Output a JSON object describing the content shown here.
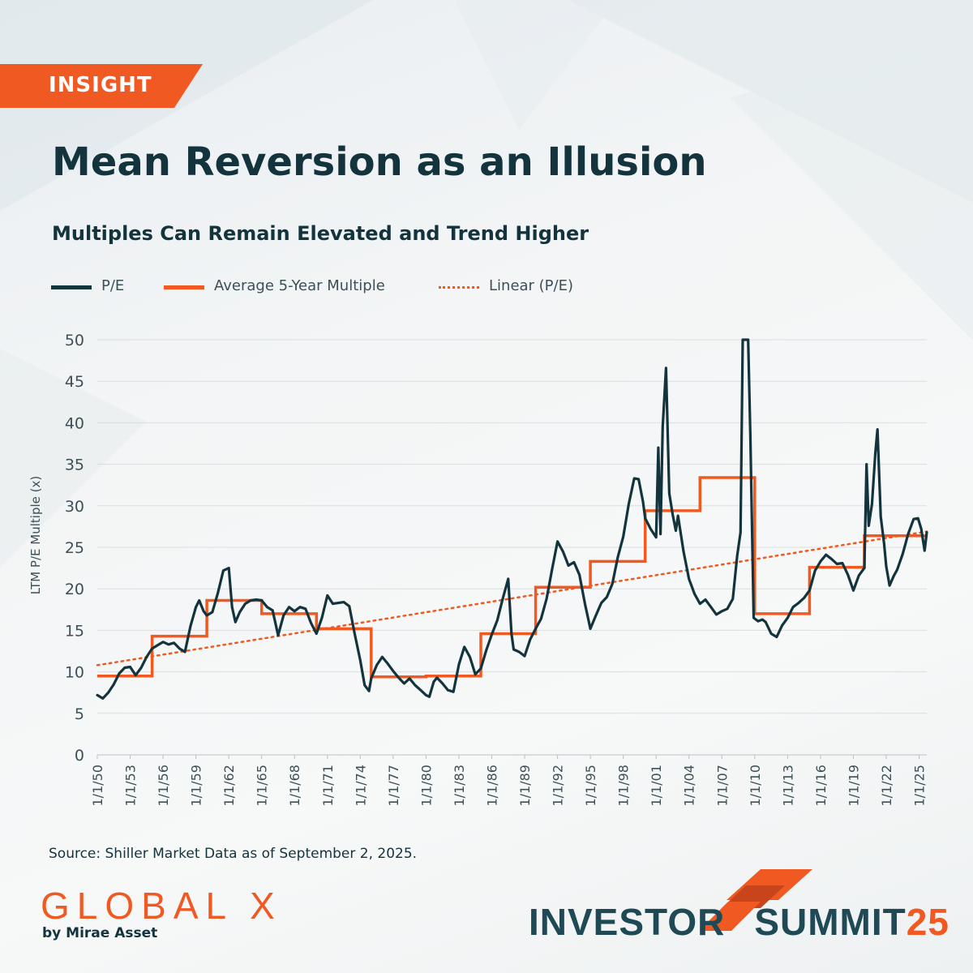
{
  "tag": "INSIGHT",
  "title": "Mean Reversion as an Illusion",
  "subtitle": "Multiples Can Remain Elevated and Trend Higher",
  "legend": {
    "pe": "P/E",
    "avg": "Average 5-Year Multiple",
    "linear": "Linear (P/E)"
  },
  "y_axis_label": "LTM P/E Multiple (x)",
  "source": "Source: Shiller Market Data as of September 2, 2025.",
  "brand": {
    "logo": "GLOBAL X",
    "logo_sub": "by Mirae Asset",
    "event_left": "INVESTOR",
    "event_right": "SUMMIT",
    "event_year": "25"
  },
  "colors": {
    "pe": "#13343d",
    "avg": "#f05a22",
    "linear": "#f05a22",
    "accent": "#f05a22"
  },
  "chart_data": {
    "type": "line",
    "ylabel": "LTM P/E Multiple (x)",
    "ylim": [
      0,
      50
    ],
    "yticks": [
      0,
      5,
      10,
      15,
      20,
      25,
      30,
      35,
      40,
      45,
      50
    ],
    "xlim": [
      1950,
      2025.7
    ],
    "xticks": [
      {
        "label": "1/1/50",
        "x": 1950
      },
      {
        "label": "1/1/53",
        "x": 1953
      },
      {
        "label": "1/1/56",
        "x": 1956
      },
      {
        "label": "1/1/59",
        "x": 1959
      },
      {
        "label": "1/1/62",
        "x": 1962
      },
      {
        "label": "1/1/65",
        "x": 1965
      },
      {
        "label": "1/1/68",
        "x": 1968
      },
      {
        "label": "1/1/71",
        "x": 1971
      },
      {
        "label": "1/1/74",
        "x": 1974
      },
      {
        "label": "1/1/77",
        "x": 1977
      },
      {
        "label": "1/1/80",
        "x": 1980
      },
      {
        "label": "1/1/83",
        "x": 1983
      },
      {
        "label": "1/1/86",
        "x": 1986
      },
      {
        "label": "1/1/89",
        "x": 1989
      },
      {
        "label": "1/1/92",
        "x": 1992
      },
      {
        "label": "1/1/95",
        "x": 1995
      },
      {
        "label": "1/1/98",
        "x": 1998
      },
      {
        "label": "1/1/01",
        "x": 2001
      },
      {
        "label": "1/1/04",
        "x": 2004
      },
      {
        "label": "1/1/07",
        "x": 2007
      },
      {
        "label": "1/1/10",
        "x": 2010
      },
      {
        "label": "1/1/13",
        "x": 2013
      },
      {
        "label": "1/1/16",
        "x": 2016
      },
      {
        "label": "1/1/19",
        "x": 2019
      },
      {
        "label": "1/1/22",
        "x": 2022
      },
      {
        "label": "1/1/25",
        "x": 2025
      }
    ],
    "series": [
      {
        "name": "P/E",
        "points": [
          [
            1950.0,
            7.2
          ],
          [
            1950.5,
            6.8
          ],
          [
            1951.0,
            7.5
          ],
          [
            1951.5,
            8.5
          ],
          [
            1952.0,
            9.8
          ],
          [
            1952.5,
            10.5
          ],
          [
            1953.0,
            10.6
          ],
          [
            1953.5,
            9.6
          ],
          [
            1954.0,
            10.5
          ],
          [
            1954.5,
            11.8
          ],
          [
            1955.0,
            12.8
          ],
          [
            1955.5,
            13.2
          ],
          [
            1956.0,
            13.6
          ],
          [
            1956.5,
            13.3
          ],
          [
            1957.0,
            13.5
          ],
          [
            1957.5,
            12.8
          ],
          [
            1958.0,
            12.4
          ],
          [
            1958.5,
            15.5
          ],
          [
            1959.0,
            17.8
          ],
          [
            1959.3,
            18.6
          ],
          [
            1959.7,
            17.3
          ],
          [
            1960.0,
            16.8
          ],
          [
            1960.5,
            17.2
          ],
          [
            1961.0,
            19.5
          ],
          [
            1961.5,
            22.2
          ],
          [
            1962.0,
            22.5
          ],
          [
            1962.3,
            17.8
          ],
          [
            1962.6,
            16.0
          ],
          [
            1963.0,
            17.2
          ],
          [
            1963.5,
            18.2
          ],
          [
            1964.0,
            18.6
          ],
          [
            1964.5,
            18.7
          ],
          [
            1965.0,
            18.6
          ],
          [
            1965.5,
            17.8
          ],
          [
            1966.0,
            17.4
          ],
          [
            1966.5,
            14.4
          ],
          [
            1967.0,
            16.8
          ],
          [
            1967.5,
            17.8
          ],
          [
            1968.0,
            17.3
          ],
          [
            1968.5,
            17.8
          ],
          [
            1969.0,
            17.6
          ],
          [
            1969.5,
            15.9
          ],
          [
            1970.0,
            14.6
          ],
          [
            1970.5,
            16.5
          ],
          [
            1971.0,
            19.2
          ],
          [
            1971.5,
            18.2
          ],
          [
            1972.0,
            18.3
          ],
          [
            1972.5,
            18.4
          ],
          [
            1973.0,
            17.9
          ],
          [
            1973.5,
            14.5
          ],
          [
            1974.0,
            11.4
          ],
          [
            1974.4,
            8.4
          ],
          [
            1974.8,
            7.7
          ],
          [
            1975.0,
            9.2
          ],
          [
            1975.5,
            10.8
          ],
          [
            1976.0,
            11.8
          ],
          [
            1976.5,
            11.0
          ],
          [
            1977.0,
            10.1
          ],
          [
            1977.5,
            9.3
          ],
          [
            1978.0,
            8.6
          ],
          [
            1978.5,
            9.2
          ],
          [
            1979.0,
            8.4
          ],
          [
            1979.5,
            7.8
          ],
          [
            1980.0,
            7.2
          ],
          [
            1980.3,
            7.0
          ],
          [
            1980.7,
            8.8
          ],
          [
            1981.0,
            9.3
          ],
          [
            1981.5,
            8.6
          ],
          [
            1982.0,
            7.8
          ],
          [
            1982.5,
            7.6
          ],
          [
            1983.0,
            10.9
          ],
          [
            1983.5,
            13.0
          ],
          [
            1984.0,
            11.8
          ],
          [
            1984.5,
            9.7
          ],
          [
            1985.0,
            10.4
          ],
          [
            1985.5,
            12.6
          ],
          [
            1986.0,
            14.5
          ],
          [
            1986.5,
            16.2
          ],
          [
            1987.0,
            18.8
          ],
          [
            1987.5,
            21.2
          ],
          [
            1987.8,
            14.6
          ],
          [
            1988.0,
            12.7
          ],
          [
            1988.5,
            12.4
          ],
          [
            1989.0,
            11.9
          ],
          [
            1989.5,
            13.9
          ],
          [
            1990.0,
            15.2
          ],
          [
            1990.5,
            16.4
          ],
          [
            1991.0,
            18.8
          ],
          [
            1991.5,
            22.3
          ],
          [
            1992.0,
            25.7
          ],
          [
            1992.5,
            24.5
          ],
          [
            1993.0,
            22.8
          ],
          [
            1993.5,
            23.2
          ],
          [
            1994.0,
            21.7
          ],
          [
            1994.5,
            18.2
          ],
          [
            1995.0,
            15.2
          ],
          [
            1995.5,
            16.8
          ],
          [
            1996.0,
            18.3
          ],
          [
            1996.5,
            19.0
          ],
          [
            1997.0,
            20.6
          ],
          [
            1997.5,
            23.8
          ],
          [
            1998.0,
            26.3
          ],
          [
            1998.5,
            30.2
          ],
          [
            1999.0,
            33.3
          ],
          [
            1999.4,
            33.2
          ],
          [
            1999.8,
            30.5
          ],
          [
            2000.0,
            28.5
          ],
          [
            2000.5,
            27.2
          ],
          [
            2001.0,
            26.2
          ],
          [
            2001.2,
            37.0
          ],
          [
            2001.4,
            26.6
          ],
          [
            2001.6,
            39.5
          ],
          [
            2001.9,
            46.6
          ],
          [
            2002.2,
            31.5
          ],
          [
            2002.5,
            29.0
          ],
          [
            2002.8,
            27.0
          ],
          [
            2003.0,
            28.8
          ],
          [
            2003.5,
            24.5
          ],
          [
            2004.0,
            21.2
          ],
          [
            2004.5,
            19.4
          ],
          [
            2005.0,
            18.2
          ],
          [
            2005.5,
            18.7
          ],
          [
            2006.0,
            17.8
          ],
          [
            2006.5,
            16.9
          ],
          [
            2007.0,
            17.3
          ],
          [
            2007.5,
            17.6
          ],
          [
            2008.0,
            18.8
          ],
          [
            2008.4,
            24.0
          ],
          [
            2008.7,
            26.8
          ],
          [
            2008.9,
            50.0
          ],
          [
            2009.2,
            50.0
          ],
          [
            2009.4,
            50.0
          ],
          [
            2009.6,
            38.5
          ],
          [
            2009.9,
            16.5
          ],
          [
            2010.3,
            16.1
          ],
          [
            2010.7,
            16.3
          ],
          [
            2011.0,
            16.0
          ],
          [
            2011.5,
            14.6
          ],
          [
            2012.0,
            14.2
          ],
          [
            2012.5,
            15.6
          ],
          [
            2013.0,
            16.5
          ],
          [
            2013.5,
            17.8
          ],
          [
            2014.0,
            18.3
          ],
          [
            2014.5,
            18.9
          ],
          [
            2015.0,
            19.8
          ],
          [
            2015.5,
            22.2
          ],
          [
            2016.0,
            23.3
          ],
          [
            2016.5,
            24.1
          ],
          [
            2017.0,
            23.6
          ],
          [
            2017.5,
            23.0
          ],
          [
            2018.0,
            23.1
          ],
          [
            2018.5,
            21.7
          ],
          [
            2019.0,
            19.8
          ],
          [
            2019.5,
            21.6
          ],
          [
            2020.0,
            22.5
          ],
          [
            2020.2,
            35.0
          ],
          [
            2020.4,
            27.6
          ],
          [
            2020.7,
            30.2
          ],
          [
            2021.0,
            36.3
          ],
          [
            2021.2,
            39.2
          ],
          [
            2021.5,
            28.7
          ],
          [
            2021.8,
            25.5
          ],
          [
            2022.0,
            22.7
          ],
          [
            2022.3,
            20.4
          ],
          [
            2022.7,
            21.6
          ],
          [
            2023.0,
            22.3
          ],
          [
            2023.5,
            24.2
          ],
          [
            2024.0,
            26.6
          ],
          [
            2024.5,
            28.4
          ],
          [
            2024.9,
            28.5
          ],
          [
            2025.2,
            27.2
          ],
          [
            2025.5,
            24.6
          ],
          [
            2025.7,
            26.8
          ]
        ]
      },
      {
        "name": "Average 5-Year Multiple",
        "steps": [
          {
            "start": 1950,
            "end": 1955,
            "value": 9.5
          },
          {
            "start": 1955,
            "end": 1960,
            "value": 14.3
          },
          {
            "start": 1960,
            "end": 1965,
            "value": 18.6
          },
          {
            "start": 1965,
            "end": 1970,
            "value": 17.0
          },
          {
            "start": 1970,
            "end": 1975,
            "value": 15.2
          },
          {
            "start": 1975,
            "end": 1980,
            "value": 9.4
          },
          {
            "start": 1980,
            "end": 1985,
            "value": 9.5
          },
          {
            "start": 1985,
            "end": 1990,
            "value": 14.6
          },
          {
            "start": 1990,
            "end": 1995,
            "value": 20.2
          },
          {
            "start": 1995,
            "end": 2000,
            "value": 23.3
          },
          {
            "start": 2000,
            "end": 2005,
            "value": 29.4
          },
          {
            "start": 2005,
            "end": 2010,
            "value": 33.4
          },
          {
            "start": 2010,
            "end": 2015,
            "value": 17.0
          },
          {
            "start": 2015,
            "end": 2020,
            "value": 22.6
          },
          {
            "start": 2020,
            "end": 2025.7,
            "value": 26.4
          }
        ]
      },
      {
        "name": "Linear (P/E)",
        "points": [
          [
            1950,
            10.8
          ],
          [
            2025.7,
            26.9
          ]
        ]
      }
    ]
  }
}
